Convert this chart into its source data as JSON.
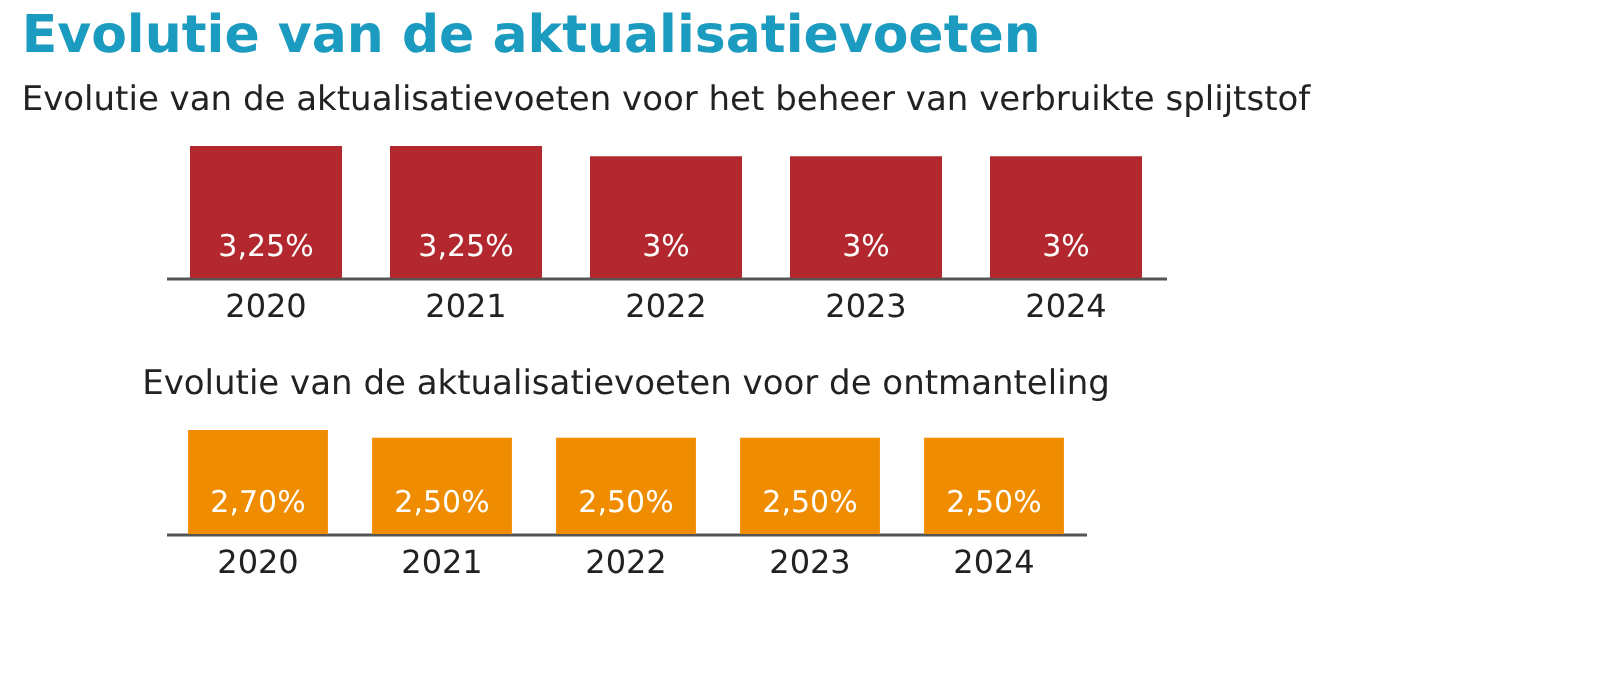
{
  "chart_data": [
    {
      "type": "bar",
      "title": "Evolutie van de aktualisatievoeten",
      "subtitle": "Evolutie van de aktualisatievoeten voor het beheer van verbruikte splijtstof",
      "categories": [
        "2020",
        "2021",
        "2022",
        "2023",
        "2024"
      ],
      "values": [
        3.25,
        3.25,
        3,
        3,
        3
      ],
      "value_labels": [
        "3,25%",
        "3,25%",
        "3%",
        "3%",
        "3%"
      ],
      "color": "#b3282e"
    },
    {
      "type": "bar",
      "title": "Evolutie van de aktualisatievoeten voor de ontmanteling",
      "categories": [
        "2020",
        "2021",
        "2022",
        "2023",
        "2024"
      ],
      "values": [
        2.7,
        2.5,
        2.5,
        2.5,
        2.5
      ],
      "value_labels": [
        "2,70%",
        "2,50%",
        "2,50%",
        "2,50%",
        "2,50%"
      ],
      "color": "#f08c00"
    }
  ]
}
